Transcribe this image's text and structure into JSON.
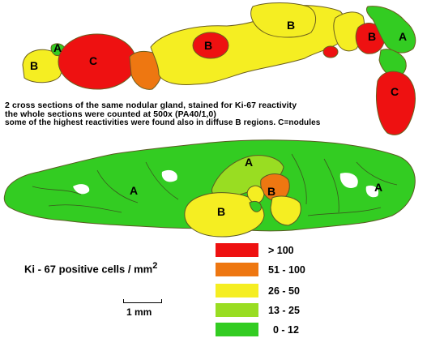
{
  "captions": {
    "line1": "2 cross sections of the same nodular gland, stained for Ki-67 reactivity",
    "line2": "the whole sections were counted at 500x (PA40/1,0)",
    "line3": "some of the highest reactivities were found also in diffuse B regions. C=nodules"
  },
  "region_labels": {
    "a": "A",
    "b": "B",
    "c": "C"
  },
  "legend": {
    "title": "Ki - 67 positive cells / mm",
    "title_sup": "2",
    "items": [
      {
        "label": "> 100",
        "color": "#ee1111"
      },
      {
        "label": "51 - 100",
        "color": "#ee7711"
      },
      {
        "label": "26 - 50",
        "color": "#f5ee22"
      },
      {
        "label": "13 - 25",
        "color": "#99dd22"
      },
      {
        "label": "0 - 12",
        "color": "#33cc22"
      }
    ]
  },
  "scale_bar": {
    "label": "1 mm"
  },
  "colors": {
    "stroke": "#5a5a22",
    "green": "#33cc22",
    "light_green": "#99dd22",
    "yellow": "#f5ee22",
    "orange": "#ee7711",
    "red": "#ee1111"
  }
}
